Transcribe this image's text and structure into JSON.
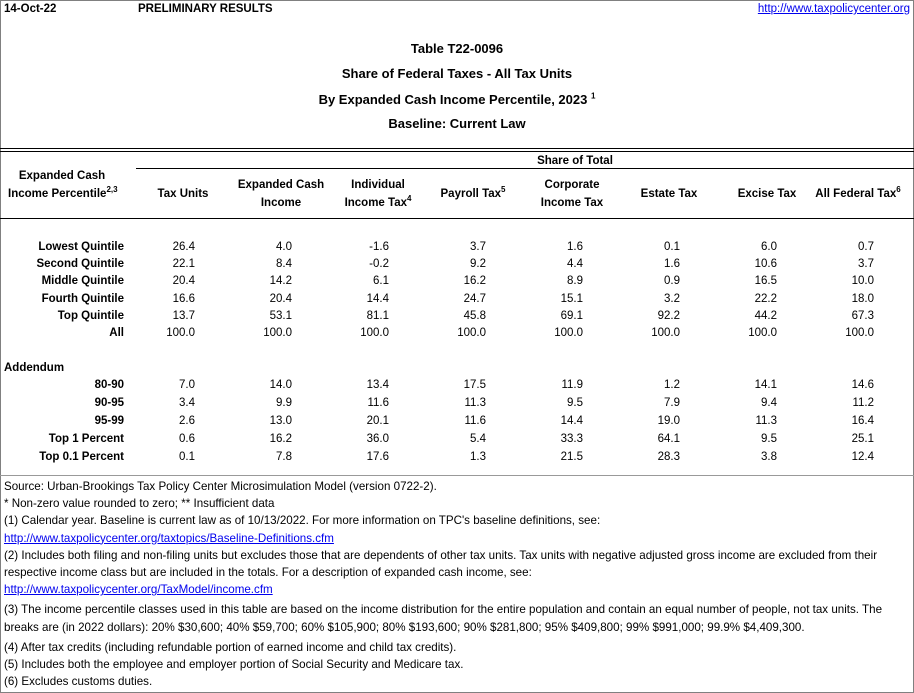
{
  "header": {
    "date": "14-Oct-22",
    "status": "PRELIMINARY RESULTS",
    "url": "http://www.taxpolicycenter.org"
  },
  "titles": {
    "table_id": "Table T22-0096",
    "line2": "Share of Federal Taxes - All Tax Units",
    "line3": "By Expanded Cash Income Percentile, 2023",
    "line3_sup": "1",
    "line4": "Baseline: Current Law"
  },
  "columns": {
    "row_header": "Expanded Cash",
    "row_header2": "Income Percentile",
    "row_header_sup": "2,3",
    "group": "Share of Total",
    "tax_units": "Tax Units",
    "eci1": "Expanded Cash",
    "eci2": "Income",
    "iit1": "Individual",
    "iit2": "Income Tax",
    "iit_sup": "4",
    "payroll": "Payroll Tax",
    "payroll_sup": "5",
    "corp1": "Corporate",
    "corp2": "Income Tax",
    "estate": "Estate Tax",
    "excise": "Excise Tax",
    "all": "All Federal Tax",
    "all_sup": "6"
  },
  "rows": [
    {
      "label": "Lowest Quintile",
      "values": [
        "26.4",
        "4.0",
        "-1.6",
        "3.7",
        "1.6",
        "0.1",
        "6.0",
        "0.7"
      ]
    },
    {
      "label": "Second Quintile",
      "values": [
        "22.1",
        "8.4",
        "-0.2",
        "9.2",
        "4.4",
        "1.6",
        "10.6",
        "3.7"
      ]
    },
    {
      "label": "Middle Quintile",
      "values": [
        "20.4",
        "14.2",
        "6.1",
        "16.2",
        "8.9",
        "0.9",
        "16.5",
        "10.0"
      ]
    },
    {
      "label": "Fourth Quintile",
      "values": [
        "16.6",
        "20.4",
        "14.4",
        "24.7",
        "15.1",
        "3.2",
        "22.2",
        "18.0"
      ]
    },
    {
      "label": "Top Quintile",
      "values": [
        "13.7",
        "53.1",
        "81.1",
        "45.8",
        "69.1",
        "92.2",
        "44.2",
        "67.3"
      ]
    },
    {
      "label": "All",
      "values": [
        "100.0",
        "100.0",
        "100.0",
        "100.0",
        "100.0",
        "100.0",
        "100.0",
        "100.0"
      ]
    }
  ],
  "addendum_label": "Addendum",
  "addendum": [
    {
      "label": "80-90",
      "values": [
        "7.0",
        "14.0",
        "13.4",
        "17.5",
        "11.9",
        "1.2",
        "14.1",
        "14.6"
      ]
    },
    {
      "label": "90-95",
      "values": [
        "3.4",
        "9.9",
        "11.6",
        "11.3",
        "9.5",
        "7.9",
        "9.4",
        "11.2"
      ]
    },
    {
      "label": "95-99",
      "values": [
        "2.6",
        "13.0",
        "20.1",
        "11.6",
        "14.4",
        "19.0",
        "11.3",
        "16.4"
      ]
    },
    {
      "label": "Top 1 Percent",
      "values": [
        "0.6",
        "16.2",
        "36.0",
        "5.4",
        "33.3",
        "64.1",
        "9.5",
        "25.1"
      ]
    },
    {
      "label": "Top 0.1 Percent",
      "values": [
        "0.1",
        "7.8",
        "17.6",
        "1.3",
        "21.5",
        "28.3",
        "3.8",
        "12.4"
      ]
    }
  ],
  "notes": {
    "source": "Source: Urban-Brookings Tax Policy Center Microsimulation Model (version 0722-2).",
    "legend": "* Non-zero value rounded to zero; ** Insufficient data",
    "n1": "(1) Calendar year. Baseline is current law as of 10/13/2022. For more information on TPC's baseline definitions, see:",
    "n1_link": "http://www.taxpolicycenter.org/taxtopics/Baseline-Definitions.cfm",
    "n2": "(2) Includes both filing and non-filing units but excludes those that are dependents of other tax units. Tax units with negative adjusted gross income are excluded from their respective income class but are included in the totals. For a description of expanded cash income, see:",
    "n2_link": "http://www.taxpolicycenter.org/TaxModel/income.cfm",
    "n3": "(3) The income percentile classes used in this table are based on the income distribution for the entire population and contain an equal number of people, not tax units. The breaks are (in 2022 dollars): 20% $30,600; 40% $59,700; 60% $105,900; 80% $193,600; 90% $281,800; 95% $409,800; 99% $991,000; 99.9% $4,409,300.",
    "n4": "(4) After tax credits (including refundable portion of earned income and child tax credits).",
    "n5": "(5) Includes both the employee and employer portion of Social Security and Medicare tax.",
    "n6": "(6) Excludes customs duties."
  }
}
